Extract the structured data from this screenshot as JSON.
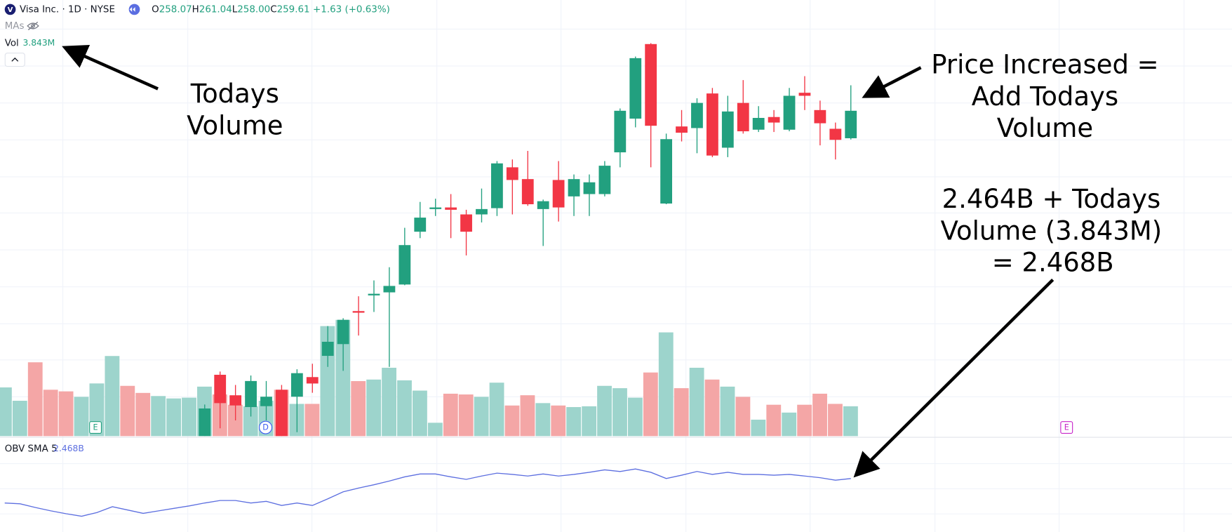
{
  "header": {
    "logo": "V",
    "title": "Visa Inc. · 1D · NYSE",
    "ohlc": [
      {
        "label": "O",
        "value": "258.07"
      },
      {
        "label": "H",
        "value": "261.04"
      },
      {
        "label": "L",
        "value": "258.00"
      },
      {
        "label": "C",
        "value": "259.61"
      }
    ],
    "change": "+1.63 (+0.63%)",
    "mas": "MAs"
  },
  "annotations": [
    {
      "lines": [
        "Todays",
        "Volume"
      ]
    },
    {
      "lines": [
        "Price Increased =",
        "Add Todays",
        "Volume"
      ]
    },
    {
      "lines": [
        "2.464B + Todays",
        "Volume (3.843M)",
        "= 2.468B"
      ]
    }
  ],
  "markers": [
    "E",
    "D",
    "E"
  ],
  "chart_data": [
    {
      "type": "candlestick",
      "up_color": "#22a07f",
      "down_color": "#f23645",
      "ylim": [
        241.37,
        265.82
      ],
      "open": [
        null,
        null,
        null,
        null,
        null,
        null,
        null,
        null,
        null,
        null,
        null,
        null,
        null,
        241.37,
        244.81,
        243.66,
        243.0,
        243.05,
        243.97,
        243.58,
        244.68,
        245.87,
        246.53,
        248.38,
        249.26,
        249.43,
        249.87,
        252.83,
        254.1,
        254.19,
        253.8,
        253.8,
        254.15,
        256.44,
        255.78,
        254.1,
        255.73,
        254.81,
        254.94,
        254.94,
        257.28,
        259.17,
        263.35,
        254.41,
        258.73,
        258.64,
        260.58,
        257.54,
        260.05,
        258.55,
        259.26,
        258.55,
        260.62,
        259.65,
        258.6,
        258.07
      ],
      "high": [
        null,
        null,
        null,
        null,
        null,
        null,
        null,
        null,
        null,
        null,
        null,
        null,
        null,
        243.14,
        244.99,
        244.24,
        244.77,
        244.46,
        244.24,
        245.12,
        245.43,
        247.54,
        247.98,
        249.21,
        250.1,
        250.84,
        253.05,
        254.5,
        254.68,
        254.94,
        254.06,
        255.25,
        256.79,
        256.88,
        257.36,
        254.63,
        256.79,
        256.04,
        256.04,
        256.79,
        259.74,
        262.65,
        263.4,
        258.33,
        259.65,
        260.31,
        260.89,
        260.45,
        261.33,
        259.87,
        259.65,
        260.89,
        261.55,
        260.18,
        258.95,
        261.04
      ],
      "low": [
        null,
        null,
        null,
        null,
        null,
        null,
        null,
        null,
        null,
        null,
        null,
        null,
        null,
        241.37,
        241.81,
        242.25,
        242.47,
        242.25,
        241.37,
        241.59,
        243.8,
        245.25,
        245.03,
        247.01,
        248.33,
        245.25,
        249.83,
        252.47,
        253.71,
        252.47,
        251.5,
        253.35,
        253.71,
        253.8,
        254.28,
        252.03,
        253.4,
        253.71,
        253.71,
        254.81,
        256.44,
        258.68,
        256.44,
        254.37,
        257.89,
        257.23,
        257.01,
        257.01,
        258.33,
        258.42,
        258.42,
        258.46,
        259.65,
        257.67,
        256.88,
        258.0
      ],
      "close": [
        null,
        null,
        null,
        null,
        null,
        null,
        null,
        null,
        null,
        null,
        null,
        null,
        null,
        242.92,
        243.22,
        243.09,
        244.46,
        243.58,
        241.37,
        244.9,
        244.32,
        246.66,
        247.89,
        248.29,
        249.35,
        249.79,
        252.08,
        253.62,
        254.19,
        254.06,
        252.83,
        254.1,
        256.66,
        255.73,
        254.37,
        254.54,
        254.19,
        255.78,
        255.6,
        256.53,
        259.61,
        262.56,
        258.77,
        258.02,
        258.38,
        260.05,
        257.1,
        259.57,
        258.46,
        259.21,
        258.95,
        260.45,
        260.45,
        258.91,
        257.98,
        259.61
      ]
    },
    {
      "type": "bar",
      "name": "Vol",
      "value_label": "3.843M",
      "ylim": [
        0,
        56.12
      ],
      "values": [
        6.27,
        4.55,
        9.5,
        5.97,
        5.76,
        5.06,
        6.78,
        10.31,
        6.47,
        5.56,
        5.16,
        4.85,
        4.95,
        6.37,
        5.36,
        4.04,
        3.84,
        4.55,
        5.97,
        4.15,
        4.15,
        14.16,
        14.96,
        7.08,
        7.28,
        8.8,
        7.18,
        5.86,
        1.72,
        5.46,
        5.36,
        5.06,
        6.88,
        3.94,
        5.26,
        4.25,
        3.94,
        3.74,
        3.84,
        6.47,
        6.17,
        4.95,
        8.19,
        13.35,
        6.17,
        8.8,
        7.28,
        6.37,
        5.06,
        2.12,
        4.04,
        3.03,
        4.04,
        5.46,
        4.15,
        3.843
      ],
      "colors": [
        "#9dd4cc",
        "#9dd4cc",
        "#f4a6a6",
        "#f4a6a6",
        "#f4a6a6",
        "#9dd4cc",
        "#9dd4cc",
        "#9dd4cc",
        "#f4a6a6",
        "#f4a6a6",
        "#9dd4cc",
        "#9dd4cc",
        "#9dd4cc",
        "#9dd4cc",
        "#f4a6a6",
        "#f4a6a6",
        "#9dd4cc",
        "#9dd4cc",
        "#f4a6a6",
        "#9dd4cc",
        "#f4a6a6",
        "#9dd4cc",
        "#9dd4cc",
        "#f4a6a6",
        "#9dd4cc",
        "#9dd4cc",
        "#9dd4cc",
        "#9dd4cc",
        "#9dd4cc",
        "#f4a6a6",
        "#f4a6a6",
        "#9dd4cc",
        "#9dd4cc",
        "#f4a6a6",
        "#f4a6a6",
        "#9dd4cc",
        "#f4a6a6",
        "#9dd4cc",
        "#9dd4cc",
        "#9dd4cc",
        "#9dd4cc",
        "#9dd4cc",
        "#f4a6a6",
        "#9dd4cc",
        "#f4a6a6",
        "#9dd4cc",
        "#f4a6a6",
        "#9dd4cc",
        "#f4a6a6",
        "#9dd4cc",
        "#f4a6a6",
        "#9dd4cc",
        "#f4a6a6",
        "#f4a6a6",
        "#f4a6a6",
        "#9dd4cc"
      ]
    },
    {
      "type": "line",
      "name": "OBV SMA 5",
      "value_label": "2.468B",
      "color": "#5d6fe0",
      "ylim": [
        2.339,
        2.557
      ],
      "values": [
        2.409,
        2.407,
        2.398,
        2.39,
        2.383,
        2.377,
        2.386,
        2.4,
        2.392,
        2.384,
        2.39,
        2.396,
        2.402,
        2.409,
        2.415,
        2.415,
        2.409,
        2.413,
        2.403,
        2.409,
        2.403,
        2.419,
        2.436,
        2.445,
        2.453,
        2.462,
        2.472,
        2.479,
        2.479,
        2.472,
        2.466,
        2.474,
        2.481,
        2.478,
        2.474,
        2.479,
        2.474,
        2.478,
        2.483,
        2.489,
        2.485,
        2.491,
        2.483,
        2.468,
        2.476,
        2.485,
        2.478,
        2.483,
        2.478,
        2.478,
        2.476,
        2.478,
        2.474,
        2.47,
        2.464,
        2.468
      ]
    }
  ]
}
